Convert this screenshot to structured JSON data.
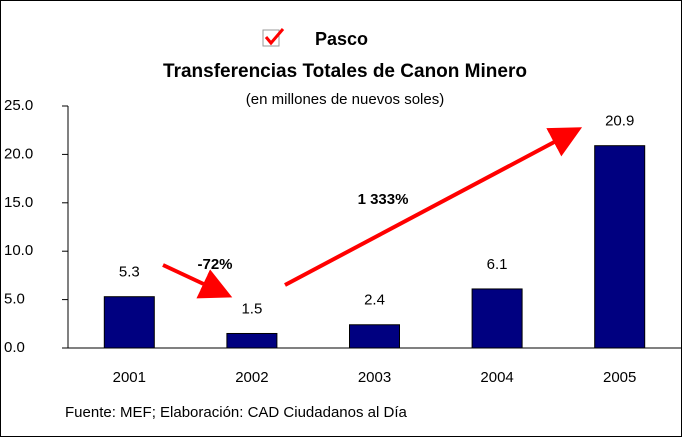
{
  "chart_data": {
    "type": "bar",
    "title": "Transferencias Totales de Canon Minero",
    "subtitle": "(en millones de nuevos soles)",
    "categories": [
      "2001",
      "2002",
      "2003",
      "2004",
      "2005"
    ],
    "series": [
      {
        "name": "Pasco",
        "color": "#000080",
        "values": [
          5.3,
          1.5,
          2.4,
          6.1,
          20.9
        ]
      }
    ],
    "ylim": [
      0,
      25
    ],
    "yticks": [
      {
        "value": 0,
        "label": "0.0"
      },
      {
        "value": 5,
        "label": "5.0"
      },
      {
        "value": 10,
        "label": "10.0"
      },
      {
        "value": 15,
        "label": "15.0"
      },
      {
        "value": 20,
        "label": "20.0"
      },
      {
        "value": 25,
        "label": "25.0"
      }
    ],
    "annotations": [
      "-72%",
      "1 333%"
    ],
    "source": "Fuente: MEF; Elaboración: CAD Ciudadanos al Día"
  }
}
